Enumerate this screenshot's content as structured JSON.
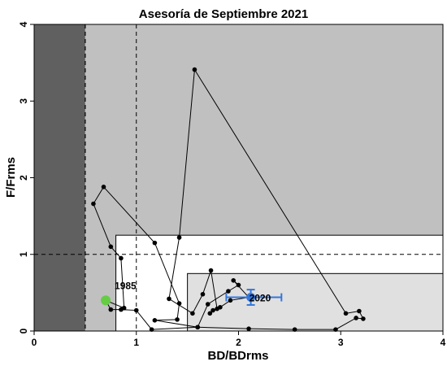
{
  "chart_data": {
    "type": "scatter",
    "title": "Asesoría de Septiembre 2021",
    "xlabel": "BD/BDrms",
    "ylabel": "F/Frms",
    "xlim": [
      0,
      4
    ],
    "ylim": [
      0,
      4
    ],
    "xticks": [
      "0",
      "1",
      "2",
      "3",
      "4"
    ],
    "yticks": [
      "0",
      "1",
      "2",
      "3",
      "4"
    ],
    "grid": false,
    "colors": {
      "dark_zone": "#606060",
      "grey_zone": "#c0c0c0",
      "white_zone": "#ffffff",
      "light_zone": "#e0e0e0",
      "line": "#000000",
      "start_point": "#66cc44",
      "current_point": "#3377dd"
    },
    "zones": [
      {
        "name": "dark",
        "x": [
          0,
          0.5
        ],
        "y": [
          0,
          4
        ]
      },
      {
        "name": "grey",
        "x": [
          0.5,
          4
        ],
        "y": [
          0,
          4
        ]
      },
      {
        "name": "white",
        "x": [
          0.8,
          4
        ],
        "y": [
          0,
          1.25
        ]
      },
      {
        "name": "light",
        "x": [
          1.5,
          4
        ],
        "y": [
          0,
          0.75
        ]
      }
    ],
    "reference_lines": {
      "vertical": [
        0.5,
        1.0
      ],
      "horizontal": [
        1.0
      ]
    },
    "series": [
      {
        "points": [
          [
            0.7,
            0.4
          ],
          [
            0.75,
            0.28
          ],
          [
            0.85,
            0.28
          ],
          [
            1.0,
            0.27
          ],
          [
            1.15,
            0.02
          ],
          [
            1.6,
            0.05
          ],
          [
            2.1,
            0.03
          ],
          [
            2.55,
            0.02
          ],
          [
            2.95,
            0.02
          ],
          [
            3.15,
            0.17
          ],
          [
            3.22,
            0.16
          ],
          [
            3.18,
            0.26
          ],
          [
            3.05,
            0.23
          ],
          [
            1.57,
            3.41
          ],
          [
            1.42,
            1.22
          ],
          [
            1.32,
            0.42
          ],
          [
            1.55,
            0.23
          ],
          [
            1.65,
            0.48
          ],
          [
            1.73,
            0.79
          ],
          [
            1.79,
            0.29
          ],
          [
            1.72,
            0.23
          ],
          [
            1.75,
            0.27
          ],
          [
            1.82,
            0.31
          ],
          [
            1.92,
            0.4
          ],
          [
            2.1,
            0.44
          ],
          [
            1.95,
            0.66
          ],
          [
            2.0,
            0.6
          ],
          [
            1.9,
            0.52
          ],
          [
            1.7,
            0.35
          ],
          [
            1.6,
            0.05
          ],
          [
            1.18,
            0.14
          ],
          [
            1.4,
            0.15
          ],
          [
            1.42,
            0.36
          ],
          [
            1.18,
            1.15
          ],
          [
            0.68,
            1.88
          ],
          [
            0.58,
            1.66
          ],
          [
            0.75,
            1.1
          ],
          [
            0.85,
            0.95
          ],
          [
            0.88,
            0.3
          ],
          [
            0.7,
            0.4
          ]
        ]
      }
    ],
    "start_marker": {
      "x": 0.7,
      "y": 0.4,
      "label": "1985"
    },
    "current_marker": {
      "x": 2.12,
      "y": 0.44,
      "x_err": [
        1.88,
        2.42
      ],
      "y_err": [
        0.34,
        0.54
      ],
      "label": "2020"
    }
  }
}
